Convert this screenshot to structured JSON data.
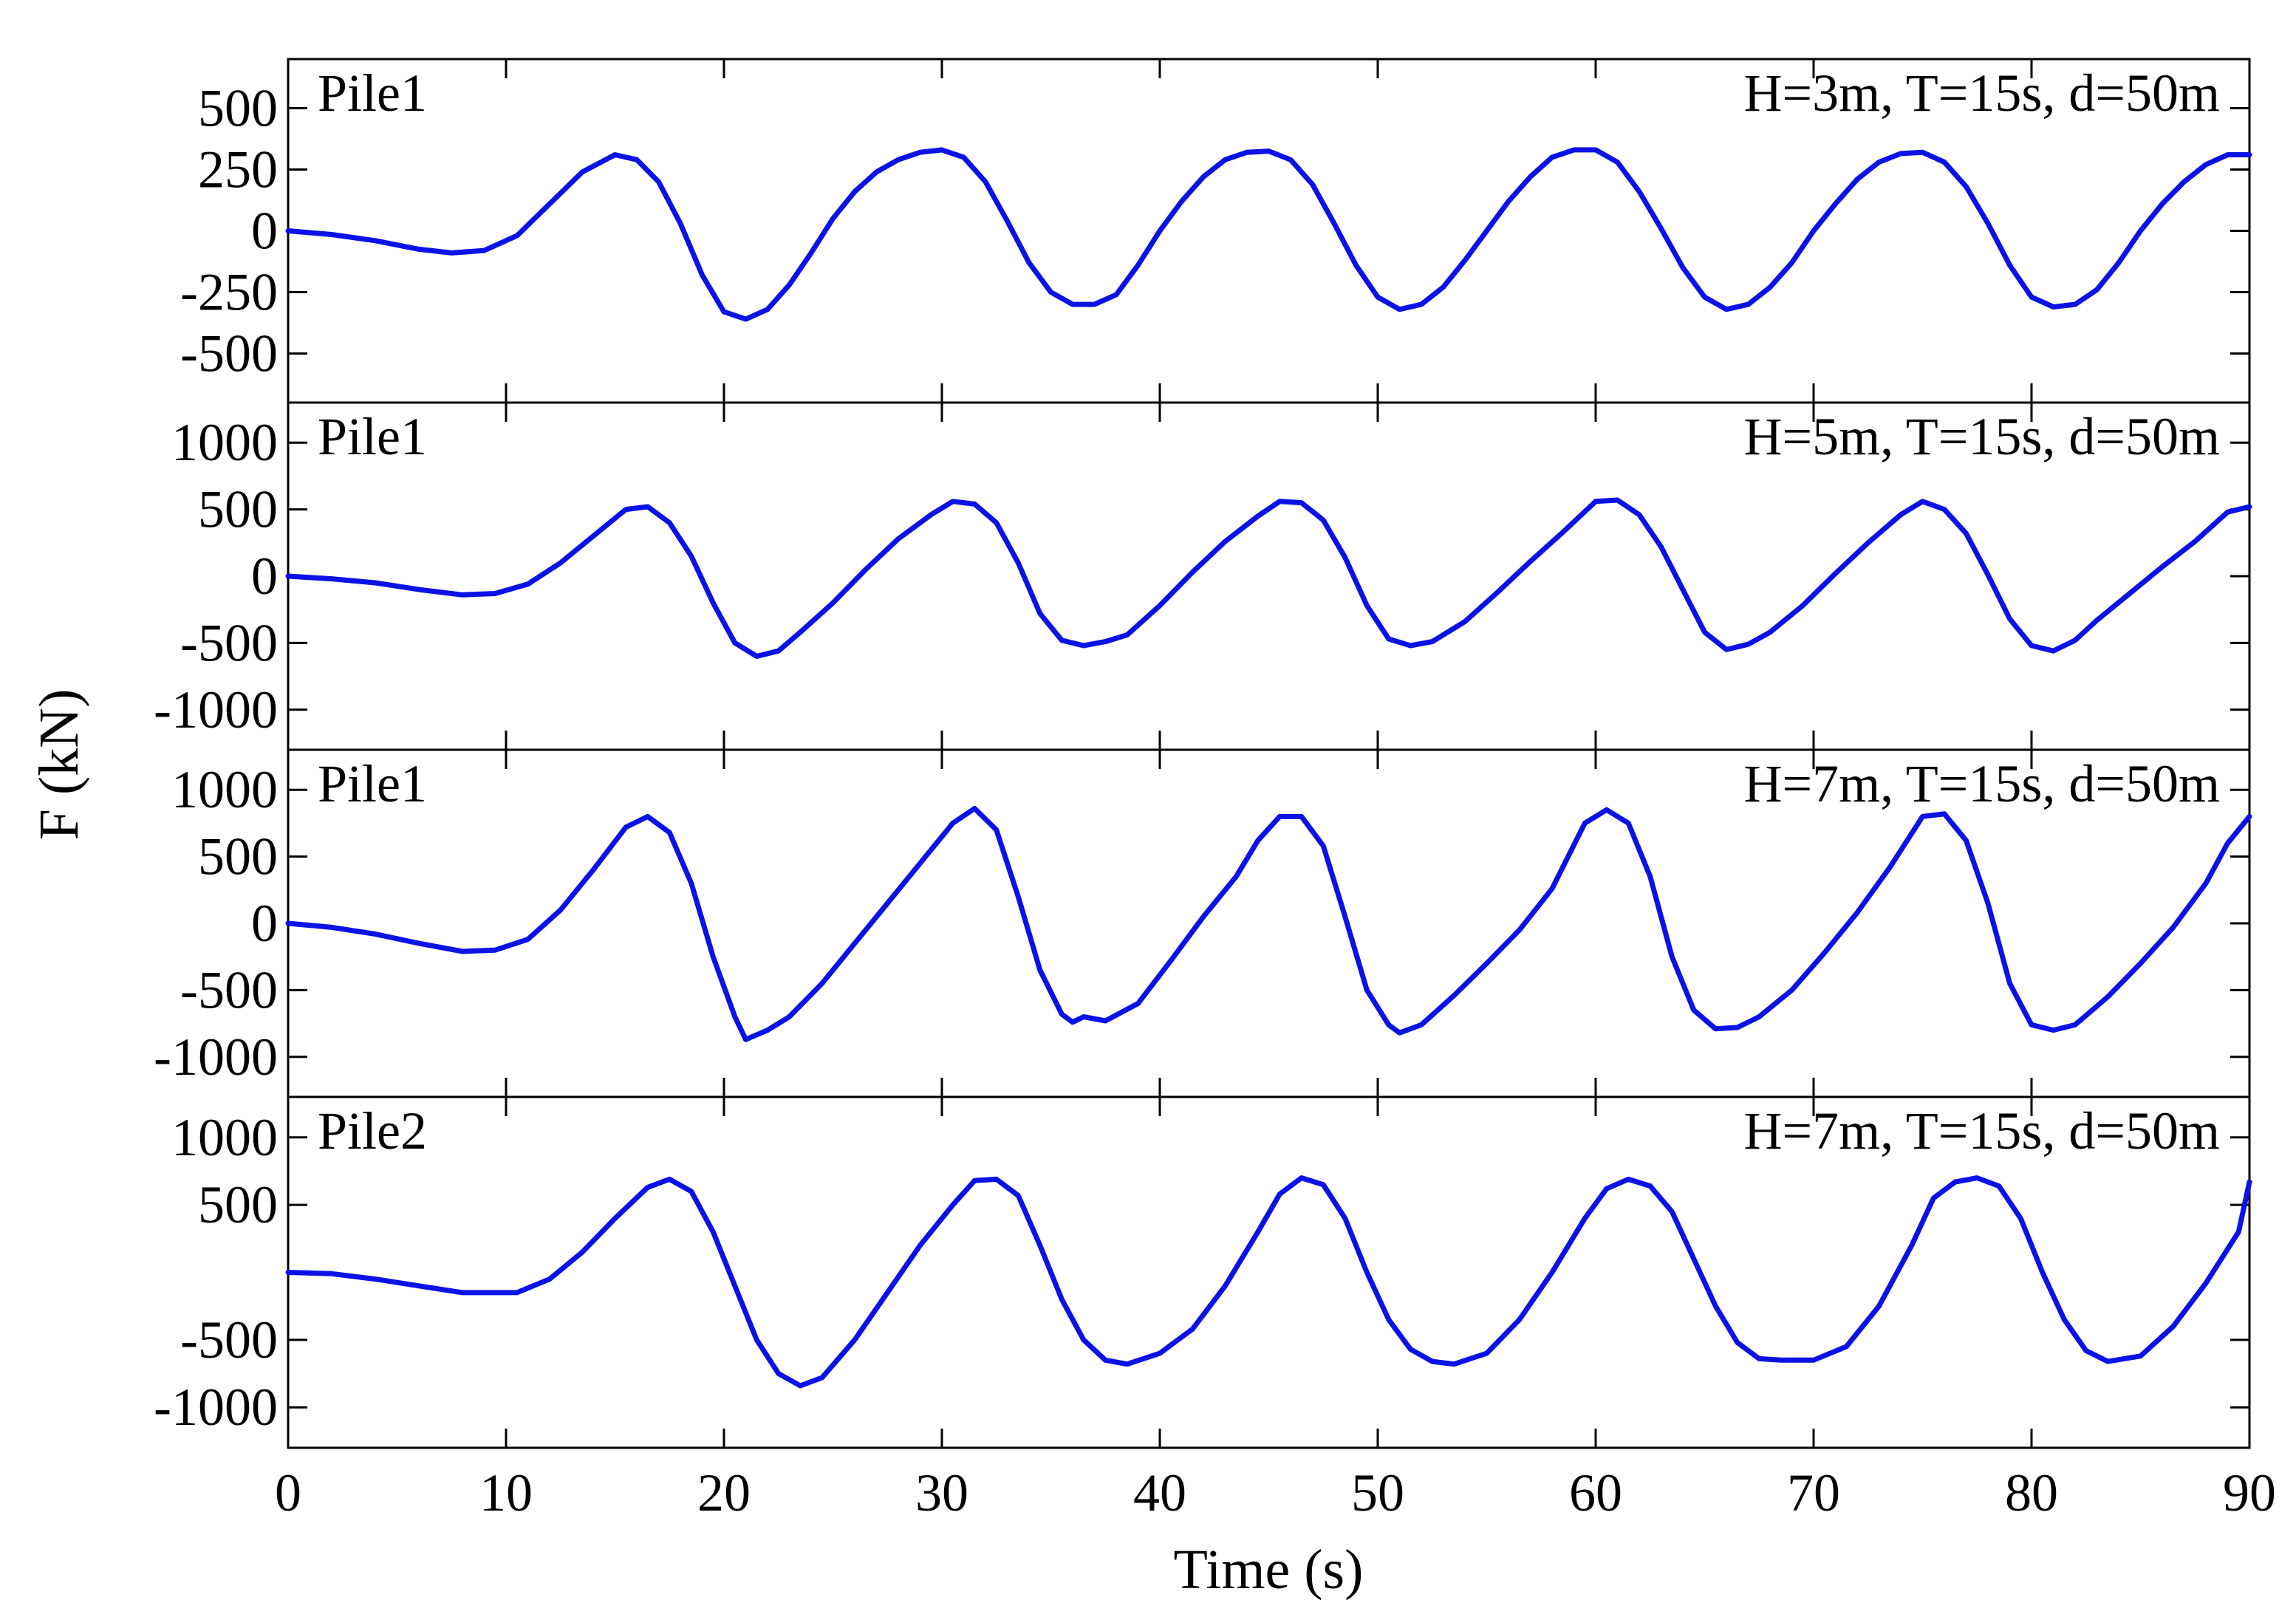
{
  "figure": {
    "y_axis_title": "F (kN)",
    "x_axis_title": "Time (s)"
  },
  "colors": {
    "series": "#0a12e6",
    "axes": "#000000",
    "background": "#ffffff"
  },
  "chart_data": [
    {
      "type": "line",
      "pile_label": "Pile1",
      "condition_label": "H=3m, T=15s, d=50m",
      "xlim": [
        0,
        90
      ],
      "ylim": [
        -700,
        700
      ],
      "yticks": [
        500,
        250,
        0,
        -250,
        -500
      ],
      "ytick_labels": [
        "500",
        "250",
        "0",
        "-250",
        "-500"
      ],
      "xticks": [
        0,
        10,
        20,
        30,
        40,
        50,
        60,
        70,
        80,
        90
      ],
      "xtick_labels": [
        "0",
        "10",
        "20",
        "30",
        "40",
        "50",
        "60",
        "70",
        "80",
        "90"
      ],
      "grid": false,
      "series": [
        {
          "x": [
            0,
            2,
            4,
            6,
            7.5,
            9,
            10.5,
            12,
            13.5,
            15,
            16,
            17,
            18,
            19,
            20,
            21,
            22,
            23,
            24,
            25,
            26,
            27,
            28,
            29,
            30,
            31,
            32,
            33,
            34,
            35,
            36,
            37,
            38,
            39,
            40,
            41,
            42,
            43,
            44,
            45,
            46,
            47,
            48,
            49,
            50,
            51,
            52,
            53,
            54,
            55,
            56,
            57,
            58,
            59,
            60,
            61,
            62,
            63,
            64,
            65,
            66,
            67,
            68,
            69,
            70,
            71,
            72,
            73,
            74,
            75,
            76,
            77,
            78,
            79,
            80,
            81,
            82,
            83,
            84,
            85,
            86,
            87,
            88,
            89,
            90
          ],
          "y": [
            0,
            -15,
            -40,
            -75,
            -90,
            -80,
            -20,
            110,
            240,
            310,
            290,
            200,
            30,
            -180,
            -330,
            -360,
            -320,
            -220,
            -90,
            50,
            160,
            240,
            290,
            320,
            330,
            300,
            200,
            40,
            -130,
            -250,
            -300,
            -300,
            -260,
            -140,
            0,
            120,
            220,
            290,
            320,
            325,
            290,
            190,
            30,
            -140,
            -270,
            -320,
            -300,
            -230,
            -120,
            0,
            120,
            220,
            300,
            330,
            330,
            280,
            160,
            10,
            -150,
            -270,
            -320,
            -300,
            -230,
            -130,
            0,
            110,
            210,
            280,
            315,
            320,
            280,
            180,
            30,
            -140,
            -270,
            -310,
            -300,
            -240,
            -130,
            0,
            110,
            200,
            270,
            310,
            310
          ]
        }
      ]
    },
    {
      "type": "line",
      "pile_label": "Pile1",
      "condition_label": "H=5m, T=15s, d=50m",
      "xlim": [
        0,
        90
      ],
      "ylim": [
        -1300,
        1300
      ],
      "yticks": [
        1000,
        500,
        0,
        -500,
        -1000
      ],
      "ytick_labels": [
        "1000",
        "500",
        "0",
        "-500",
        "-1000"
      ],
      "xticks": [
        0,
        10,
        20,
        30,
        40,
        50,
        60,
        70,
        80,
        90
      ],
      "grid": false,
      "series": [
        {
          "x": [
            0,
            2,
            4,
            6,
            8,
            9.5,
            11,
            12.5,
            14,
            15.5,
            16.5,
            17.5,
            18.5,
            19.5,
            20.5,
            21.5,
            22.5,
            23.5,
            25,
            26.5,
            28,
            29.5,
            30.5,
            31.5,
            32.5,
            33.5,
            34.5,
            35.5,
            36.5,
            37.5,
            38.5,
            40,
            41.5,
            43,
            44.5,
            45.5,
            46.5,
            47.5,
            48.5,
            49.5,
            50.5,
            51.5,
            52.5,
            54,
            55.5,
            57,
            58.5,
            60,
            61,
            62,
            63,
            64,
            65,
            66,
            67,
            68,
            69.5,
            71,
            72.5,
            74,
            75,
            76,
            77,
            78,
            79,
            80,
            81,
            82,
            83,
            84.5,
            86,
            87.5,
            89,
            90
          ],
          "y": [
            0,
            -20,
            -50,
            -100,
            -140,
            -130,
            -60,
            100,
            300,
            500,
            520,
            400,
            150,
            -200,
            -500,
            -600,
            -560,
            -420,
            -200,
            50,
            280,
            460,
            560,
            540,
            400,
            100,
            -280,
            -480,
            -520,
            -490,
            -440,
            -220,
            30,
            260,
            450,
            560,
            550,
            420,
            140,
            -220,
            -470,
            -520,
            -490,
            -340,
            -120,
            110,
            330,
            560,
            570,
            460,
            220,
            -100,
            -420,
            -550,
            -510,
            -420,
            -220,
            20,
            250,
            460,
            560,
            500,
            320,
            10,
            -320,
            -520,
            -560,
            -480,
            -330,
            -130,
            70,
            260,
            480,
            520
          ]
        }
      ]
    },
    {
      "type": "line",
      "pile_label": "Pile1",
      "condition_label": "H=7m, T=15s, d=50m",
      "xlim": [
        0,
        90
      ],
      "ylim": [
        -1300,
        1300
      ],
      "yticks": [
        1000,
        500,
        0,
        -500,
        -1000
      ],
      "ytick_labels": [
        "1000",
        "500",
        "0",
        "-500",
        "-1000"
      ],
      "xticks": [
        0,
        10,
        20,
        30,
        40,
        50,
        60,
        70,
        80,
        90
      ],
      "grid": false,
      "series": [
        {
          "x": [
            0,
            2,
            4,
            6,
            8,
            9.5,
            11,
            12.5,
            14,
            15.5,
            16.5,
            17.5,
            18.5,
            19.5,
            20.5,
            21,
            22,
            23,
            24.5,
            26,
            27.5,
            29,
            30.5,
            31.5,
            32.5,
            33.5,
            34.5,
            35.5,
            36,
            36.5,
            37.5,
            39,
            40.5,
            42,
            43.5,
            44.5,
            45.5,
            46.5,
            47.5,
            48.5,
            49.5,
            50.5,
            51,
            52,
            53.5,
            55,
            56.5,
            58,
            59.5,
            60.5,
            61.5,
            62.5,
            63.5,
            64.5,
            65.5,
            66.5,
            67.5,
            69,
            70.5,
            72,
            73.5,
            75,
            76,
            77,
            78,
            79,
            80,
            81,
            82,
            83.5,
            85,
            86.5,
            88,
            89,
            90
          ],
          "y": [
            0,
            -30,
            -80,
            -150,
            -210,
            -200,
            -120,
            100,
            400,
            720,
            800,
            680,
            300,
            -250,
            -700,
            -870,
            -800,
            -700,
            -450,
            -150,
            150,
            450,
            750,
            860,
            700,
            200,
            -350,
            -680,
            -740,
            -700,
            -730,
            -600,
            -280,
            50,
            350,
            620,
            800,
            800,
            580,
            50,
            -500,
            -760,
            -820,
            -760,
            -540,
            -300,
            -50,
            260,
            750,
            850,
            750,
            350,
            -250,
            -650,
            -790,
            -780,
            -700,
            -500,
            -220,
            80,
            420,
            800,
            820,
            620,
            150,
            -450,
            -760,
            -800,
            -760,
            -550,
            -300,
            -30,
            300,
            600,
            800
          ]
        }
      ]
    },
    {
      "type": "line",
      "pile_label": "Pile2",
      "condition_label": "H=7m, T=15s, d=50m",
      "xlim": [
        0,
        90
      ],
      "ylim": [
        -1300,
        1300
      ],
      "yticks": [
        1000,
        500,
        -500,
        -1000
      ],
      "ytick_labels": [
        "1000",
        "500",
        "-500",
        "-1000"
      ],
      "xticks": [
        0,
        10,
        20,
        30,
        40,
        50,
        60,
        70,
        80,
        90
      ],
      "xtick_labels": [
        "0",
        "10",
        "20",
        "30",
        "40",
        "50",
        "60",
        "70",
        "80",
        "90"
      ],
      "grid": false,
      "series": [
        {
          "x": [
            0,
            2,
            4,
            6,
            8,
            10.5,
            12,
            13.5,
            15,
            16.5,
            17.5,
            18.5,
            19.5,
            20.5,
            21.5,
            22.5,
            23.5,
            24.5,
            26,
            27.5,
            29,
            30.5,
            31.5,
            32.5,
            33.5,
            34.5,
            35.5,
            36.5,
            37.5,
            38.5,
            40,
            41.5,
            43,
            44.5,
            45.5,
            46.5,
            47.5,
            48.5,
            49.5,
            50.5,
            51.5,
            52.5,
            53.5,
            55,
            56.5,
            58,
            59.5,
            60.5,
            61.5,
            62.5,
            63.5,
            64.5,
            65.5,
            66.5,
            67.5,
            68.5,
            70,
            71.5,
            73,
            74.5,
            75.5,
            76.5,
            77.5,
            78.5,
            79.5,
            80.5,
            81.5,
            82.5,
            83.5,
            85,
            86.5,
            88,
            89.5,
            90
          ],
          "y": [
            0,
            -10,
            -50,
            -100,
            -150,
            -150,
            -50,
            150,
            400,
            630,
            690,
            600,
            300,
            -100,
            -500,
            -750,
            -840,
            -780,
            -500,
            -150,
            200,
            500,
            680,
            690,
            570,
            200,
            -200,
            -500,
            -650,
            -680,
            -600,
            -420,
            -100,
            300,
            580,
            700,
            650,
            400,
            0,
            -350,
            -570,
            -660,
            -680,
            -600,
            -350,
            0,
            400,
            620,
            690,
            640,
            450,
            100,
            -250,
            -520,
            -640,
            -650,
            -650,
            -550,
            -250,
            200,
            550,
            670,
            700,
            640,
            400,
            0,
            -350,
            -580,
            -660,
            -620,
            -400,
            -80,
            300,
            670
          ]
        }
      ]
    }
  ]
}
